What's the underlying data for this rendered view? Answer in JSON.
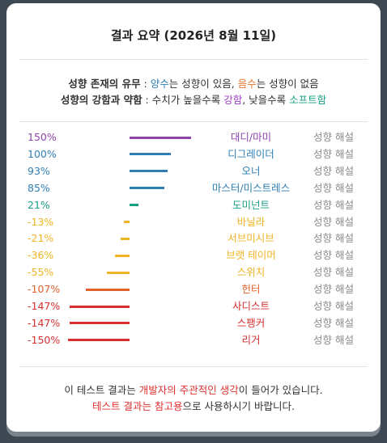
{
  "header": {
    "title": "결과 요약 (2026년 8월 11일)"
  },
  "legend": [
    [
      {
        "text": "성향 존재의 유무",
        "bold": true
      },
      {
        "text": " : "
      },
      {
        "text": "양수",
        "color": "#2f7fb5"
      },
      {
        "text": "는 성향이 있음, "
      },
      {
        "text": "음수",
        "color": "#e8772e"
      },
      {
        "text": "는 성향이 없음"
      }
    ],
    [
      {
        "text": "성향의 강함과 약함",
        "bold": true
      },
      {
        "text": " : 수치가 높을수록 "
      },
      {
        "text": "강함",
        "color": "#9b3fc0"
      },
      {
        "text": ", 낮을수록 "
      },
      {
        "text": "소프트함",
        "color": "#1aa085"
      }
    ]
  ],
  "chart_data": {
    "type": "bar",
    "orientation": "horizontal",
    "categories": [
      "대디/마미",
      "디그레이더",
      "오너",
      "마스터/미스트레스",
      "도미넌트",
      "바닐라",
      "서브미시브",
      "브랫 테이머",
      "스위치",
      "헌터",
      "사디스트",
      "스팽커",
      "리거"
    ],
    "values": [
      150,
      100,
      93,
      85,
      21,
      -13,
      -21,
      -36,
      -55,
      -107,
      -147,
      -147,
      -150
    ],
    "value_labels": [
      "150%",
      "100%",
      "93%",
      "85%",
      "21%",
      "-13%",
      "-21%",
      "-36%",
      "-55%",
      "-107%",
      "-147%",
      "-147%",
      "-150%"
    ],
    "colors": [
      "#8e44ad",
      "#2f7fb5",
      "#2f7fb5",
      "#2f7fb5",
      "#1aa085",
      "#f0b323",
      "#f0b323",
      "#f0b323",
      "#f0b323",
      "#e2622c",
      "#d63031",
      "#d63031",
      "#d63031"
    ],
    "xlim": [
      -150,
      150
    ],
    "detail_link": "성향 해설"
  },
  "footer": [
    [
      {
        "text": "이 테스트 결과는 "
      },
      {
        "text": "개발자의 주관적인 생각",
        "color": "#e03131"
      },
      {
        "text": "이 들어가 있습니다."
      }
    ],
    [
      {
        "text": "테스트 결과는 ",
        "color": "#e03131"
      },
      {
        "text": "참고용",
        "color": "#e03131"
      },
      {
        "text": "으로 사용하시기 바랍니다."
      }
    ]
  ]
}
